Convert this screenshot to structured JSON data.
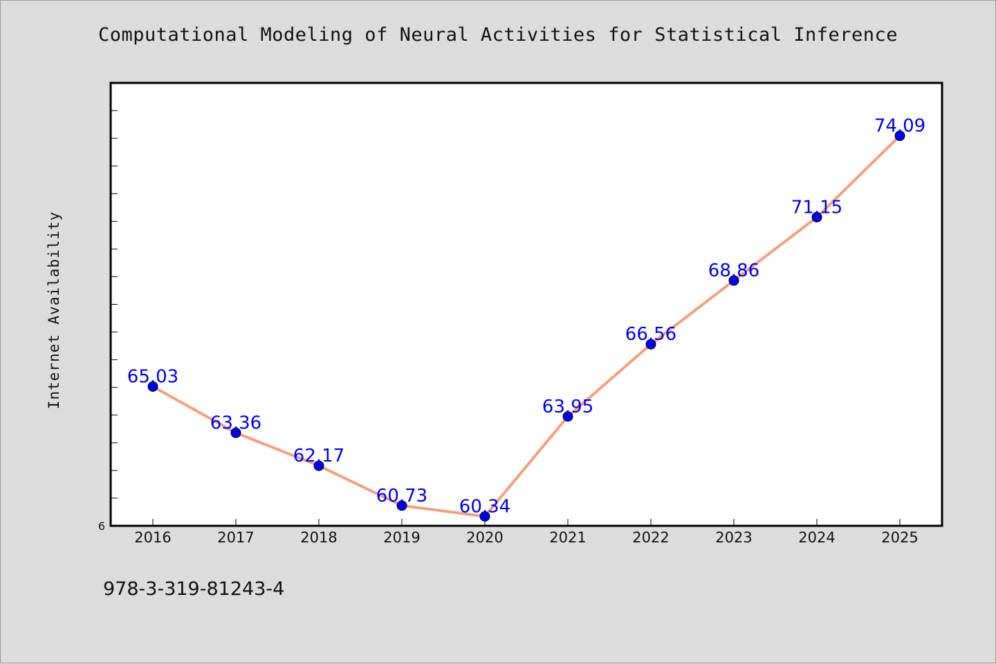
{
  "chart_data": {
    "type": "line",
    "title": "Computational Modeling of Neural Activities for Statistical Inference",
    "ylabel": "Internet Availability",
    "xlabel": "",
    "categories": [
      "2016",
      "2017",
      "2018",
      "2019",
      "2020",
      "2021",
      "2022",
      "2023",
      "2024",
      "2025"
    ],
    "series": [
      {
        "values": [
          65.03,
          63.36,
          62.17,
          60.73,
          60.34,
          63.95,
          66.56,
          68.86,
          71.15,
          74.09
        ]
      }
    ],
    "data_labels": [
      "65.03",
      "63.36",
      "62.17",
      "60.73",
      "60.34",
      "63.95",
      "66.56",
      "68.86",
      "71.15",
      "74.09"
    ],
    "ylim": [
      60,
      76
    ],
    "y_tick_label": "6",
    "line_color": "#f4a07e",
    "marker_color": "#0000ee",
    "label_color": "#0000ee",
    "plot_background": "#ffffff",
    "grid": false
  },
  "footer": {
    "isbn": "978-3-319-81243-4"
  }
}
